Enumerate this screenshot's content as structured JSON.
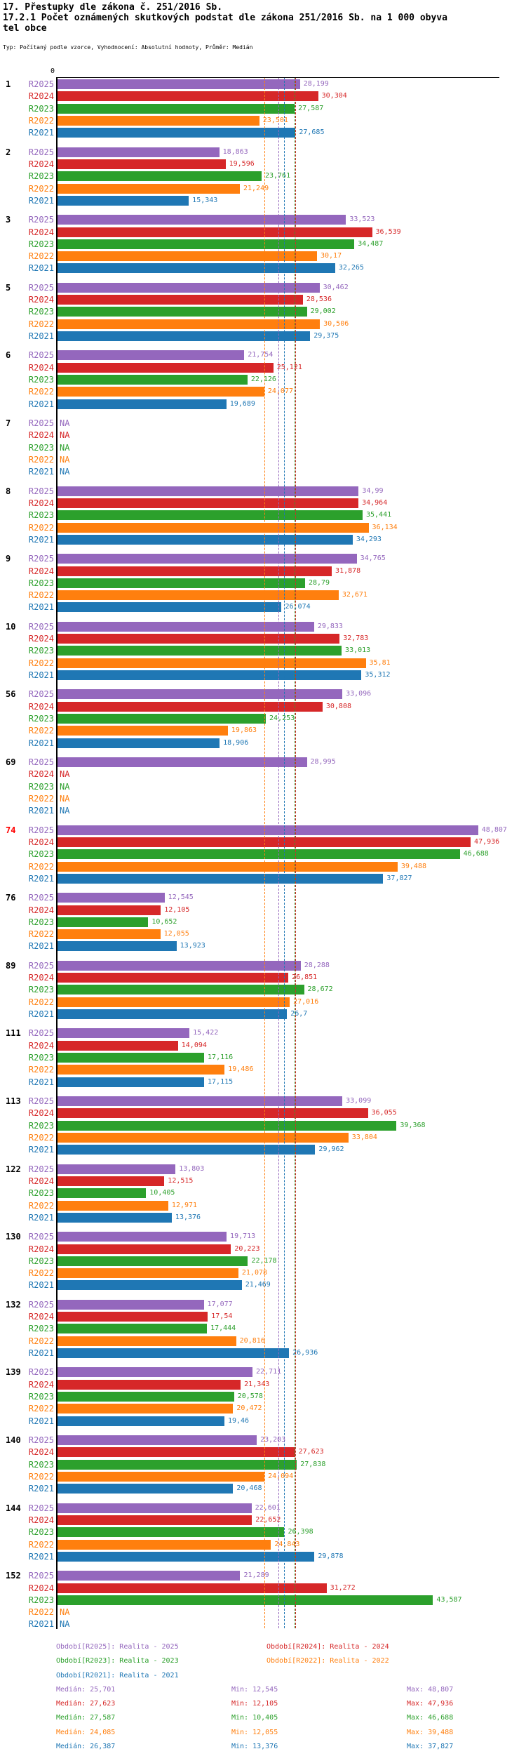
{
  "header": {
    "title_line1": "17. Přestupky dle zákona č. 251/2016 Sb.",
    "title_line2": "17.2.1 Počet oznámených skutkových podstat dle zákona 251/2016 Sb. na 1 000 obyva",
    "title_line3": "tel obce",
    "subtitle": "Typ: Počítaný podle vzorce, Vyhodnocení: Absolutní hodnoty, Průměr: Medián"
  },
  "chart_data": {
    "type": "bar",
    "orientation": "horizontal",
    "value_format": "czech-decimal-comma",
    "axis": {
      "zero_label": "0",
      "range": [
        0,
        51
      ],
      "grid": false
    },
    "highlight_color": "#ff0000",
    "series": [
      {
        "id": "R2025",
        "color": "#9467bd"
      },
      {
        "id": "R2024",
        "color": "#d62728"
      },
      {
        "id": "R2023",
        "color": "#2ca02c"
      },
      {
        "id": "R2022",
        "color": "#ff7f0e"
      },
      {
        "id": "R2021",
        "color": "#1f77b4"
      }
    ],
    "median_line_order": [
      "R2024",
      "R2022",
      "R2025",
      "R2021",
      "R2023"
    ],
    "groups": [
      {
        "label": "1",
        "highlight": false,
        "values": [
          "28,199",
          "30,304",
          "27,587",
          "23,501",
          "27,685"
        ]
      },
      {
        "label": "2",
        "highlight": false,
        "values": [
          "18,863",
          "19,596",
          "23,761",
          "21,249",
          "15,343"
        ]
      },
      {
        "label": "3",
        "highlight": false,
        "values": [
          "33,523",
          "36,539",
          "34,487",
          "30,17",
          "32,265"
        ]
      },
      {
        "label": "5",
        "highlight": false,
        "values": [
          "30,462",
          "28,536",
          "29,002",
          "30,506",
          "29,375"
        ]
      },
      {
        "label": "6",
        "highlight": false,
        "values": [
          "21,754",
          "25,121",
          "22,126",
          "24,077",
          "19,689"
        ]
      },
      {
        "label": "7",
        "highlight": false,
        "values": [
          "NA",
          "NA",
          "NA",
          "NA",
          "NA"
        ]
      },
      {
        "label": "8",
        "highlight": false,
        "values": [
          "34,99",
          "34,964",
          "35,441",
          "36,134",
          "34,293"
        ]
      },
      {
        "label": "9",
        "highlight": false,
        "values": [
          "34,765",
          "31,878",
          "28,79",
          "32,671",
          "26,074"
        ]
      },
      {
        "label": "10",
        "highlight": false,
        "values": [
          "29,833",
          "32,783",
          "33,013",
          "35,81",
          "35,312"
        ]
      },
      {
        "label": "56",
        "highlight": false,
        "values": [
          "33,096",
          "30,808",
          "24,253",
          "19,863",
          "18,906"
        ]
      },
      {
        "label": "69",
        "highlight": false,
        "values": [
          "28,995",
          "NA",
          "NA",
          "NA",
          "NA"
        ]
      },
      {
        "label": "74",
        "highlight": true,
        "values": [
          "48,807",
          "47,936",
          "46,688",
          "39,488",
          "37,827"
        ]
      },
      {
        "label": "76",
        "highlight": false,
        "values": [
          "12,545",
          "12,105",
          "10,652",
          "12,055",
          "13,923"
        ]
      },
      {
        "label": "89",
        "highlight": false,
        "values": [
          "28,288",
          "26,851",
          "28,672",
          "27,016",
          "26,7"
        ]
      },
      {
        "label": "111",
        "highlight": false,
        "values": [
          "15,422",
          "14,094",
          "17,116",
          "19,486",
          "17,115"
        ]
      },
      {
        "label": "113",
        "highlight": false,
        "values": [
          "33,099",
          "36,055",
          "39,368",
          "33,804",
          "29,962"
        ]
      },
      {
        "label": "122",
        "highlight": false,
        "values": [
          "13,803",
          "12,515",
          "10,405",
          "12,971",
          "13,376"
        ]
      },
      {
        "label": "130",
        "highlight": false,
        "values": [
          "19,713",
          "20,223",
          "22,178",
          "21,078",
          "21,469"
        ]
      },
      {
        "label": "132",
        "highlight": false,
        "values": [
          "17,077",
          "17,54",
          "17,444",
          "20,816",
          "26,936"
        ]
      },
      {
        "label": "139",
        "highlight": false,
        "values": [
          "22,711",
          "21,343",
          "20,578",
          "20,472",
          "19,46"
        ]
      },
      {
        "label": "140",
        "highlight": false,
        "values": [
          "23,203",
          "27,623",
          "27,838",
          "24,094",
          "20,468"
        ]
      },
      {
        "label": "144",
        "highlight": false,
        "values": [
          "22,601",
          "22,652",
          "26,398",
          "24,843",
          "29,878"
        ]
      },
      {
        "label": "152",
        "highlight": false,
        "values": [
          "21,289",
          "31,272",
          "43,587",
          "NA",
          "NA"
        ]
      }
    ]
  },
  "legend": {
    "items": [
      {
        "series": "R2025",
        "label": "Období[R2025]: Realita - 2025",
        "col": 0,
        "row": 0
      },
      {
        "series": "R2024",
        "label": "Období[R2024]: Realita - 2024",
        "col": 1,
        "row": 0
      },
      {
        "series": "R2023",
        "label": "Období[R2023]: Realita - 2023",
        "col": 0,
        "row": 1
      },
      {
        "series": "R2022",
        "label": "Období[R2022]: Realita - 2022",
        "col": 1,
        "row": 1
      },
      {
        "series": "R2021",
        "label": "Období[R2021]: Realita - 2021",
        "col": 0,
        "row": 2
      }
    ]
  },
  "stats": {
    "labels": {
      "median": "Medián:",
      "min": "Min:",
      "max": "Max:"
    },
    "rows": [
      {
        "series": "R2025",
        "median": "25,701",
        "min": "12,545",
        "max": "48,807"
      },
      {
        "series": "R2024",
        "median": "27,623",
        "min": "12,105",
        "max": "47,936"
      },
      {
        "series": "R2023",
        "median": "27,587",
        "min": "10,405",
        "max": "46,688"
      },
      {
        "series": "R2022",
        "median": "24,085",
        "min": "12,055",
        "max": "39,488"
      },
      {
        "series": "R2021",
        "median": "26,387",
        "min": "13,376",
        "max": "37,827"
      }
    ]
  }
}
